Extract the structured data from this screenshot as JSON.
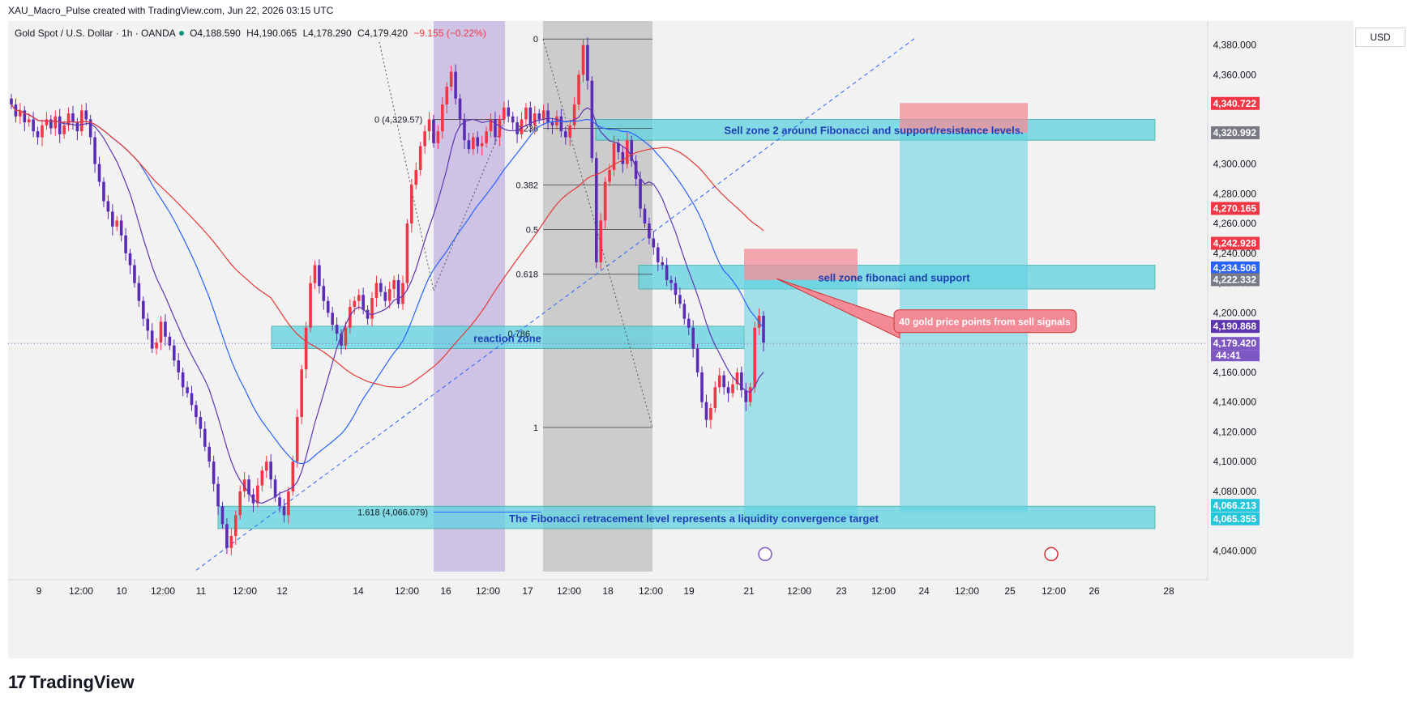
{
  "header": {
    "title": "XAU_Macro_Pulse created with TradingView.com, Jun 22, 2026 03:15 UTC"
  },
  "symbol": {
    "name": "Gold Spot / U.S. Dollar · 1h · OANDA",
    "open_label": "O",
    "open": "4,188.590",
    "high_label": "H",
    "high": "4,190.065",
    "low_label": "L",
    "low": "4,178.290",
    "close_label": "C",
    "close": "4,179.420",
    "change": "−9.155 (−0.22%)"
  },
  "currency": "USD",
  "footer": {
    "brand": "TradingView"
  },
  "colors": {
    "up": "#f23645",
    "down": "#5b2bb5",
    "zone": "#5fd2e0",
    "sell": "#f28b96",
    "ma_red": "#e53935",
    "ma_blue": "#2962ff",
    "ma_purple": "#5e35b1"
  },
  "chart_data": {
    "type": "candlestick",
    "ylim": [
      4025,
      4395
    ],
    "xlim": [
      0,
      1620
    ],
    "y_ticks": [
      "4,380.000",
      "4,360.000",
      "4,340.000",
      "4,320.000",
      "4,300.000",
      "4,280.000",
      "4,260.000",
      "4,240.000",
      "4,220.000",
      "4,200.000",
      "4,180.000",
      "4,160.000",
      "4,140.000",
      "4,120.000",
      "4,100.000",
      "4,080.000",
      "4,060.000",
      "4,040.000"
    ],
    "y_tick_values": [
      4380,
      4360,
      4340,
      4320,
      4300,
      4280,
      4260,
      4240,
      4220,
      4200,
      4180,
      4160,
      4140,
      4120,
      4100,
      4080,
      4060,
      4040
    ],
    "x_ticks": [
      {
        "label": "9",
        "x": 38
      },
      {
        "label": "12:00",
        "x": 90
      },
      {
        "label": "10",
        "x": 140
      },
      {
        "label": "12:00",
        "x": 191
      },
      {
        "label": "11",
        "x": 238
      },
      {
        "label": "12:00",
        "x": 292
      },
      {
        "label": "12",
        "x": 338
      },
      {
        "label": "14",
        "x": 432
      },
      {
        "label": "12:00",
        "x": 492
      },
      {
        "label": "16",
        "x": 540
      },
      {
        "label": "12:00",
        "x": 592
      },
      {
        "label": "17",
        "x": 641
      },
      {
        "label": "12:00",
        "x": 692
      },
      {
        "label": "18",
        "x": 740
      },
      {
        "label": "12:00",
        "x": 793
      },
      {
        "label": "19",
        "x": 840
      },
      {
        "label": "21",
        "x": 914
      },
      {
        "label": "12:00",
        "x": 976
      },
      {
        "label": "23",
        "x": 1028
      },
      {
        "label": "12:00",
        "x": 1080
      },
      {
        "label": "24",
        "x": 1130
      },
      {
        "label": "12:00",
        "x": 1183
      },
      {
        "label": "25",
        "x": 1236
      },
      {
        "label": "12:00",
        "x": 1290
      },
      {
        "label": "26",
        "x": 1340
      },
      {
        "label": "28",
        "x": 1432
      }
    ],
    "price_badges": [
      {
        "label": "4,340.722",
        "value": 4340.722,
        "color": "#f23645"
      },
      {
        "label": "4,320.992",
        "value": 4320.992,
        "color": "#787b86"
      },
      {
        "label": "4,270.165",
        "value": 4270.165,
        "color": "#f23645"
      },
      {
        "label": "4,242.928",
        "value": 4242.928,
        "color": "#f23645"
      },
      {
        "label": "4,234.506",
        "value": 4234.506,
        "color": "#2962ff"
      },
      {
        "label": "4,222.332",
        "value": 4222.332,
        "color": "#787b86"
      },
      {
        "label": "4,190.868",
        "value": 4190.868,
        "color": "#5e35b1"
      },
      {
        "label": "4,179.420",
        "value": 4179.42,
        "color": "#7e57c2"
      },
      {
        "label": "4,066.213",
        "value": 4066.213,
        "color": "#26c6da"
      },
      {
        "label": "4,065.355",
        "value": 4065.355,
        "color": "#26c6da"
      }
    ],
    "countdown": "44:41",
    "fib_levels": [
      {
        "label": "0",
        "value": 4384
      },
      {
        "label": "0.236",
        "value": 4324
      },
      {
        "label": "0.382",
        "value": 4286
      },
      {
        "label": "0.5",
        "value": 4256
      },
      {
        "label": "0.618",
        "value": 4226
      },
      {
        "label": "1",
        "value": 4123
      }
    ],
    "fib_extension": {
      "label": "1.618 (4,066.079)",
      "value": 4066.079
    },
    "fib_zero_note": "0 (4,329.57)",
    "fib_partial": "0.786",
    "annotations": {
      "sell_zone_2": "Sell zone 2 around Fibonacci and support/resistance levels.",
      "sell_zone": "sell zone fibonaci and support",
      "reaction_zone": "reaction zone",
      "fib_target": "The Fibonacci retracement level represents a liquidity convergence target",
      "callout": "40 gold price points from sell signals"
    },
    "candles_close": [
      4340,
      4332,
      4336,
      4328,
      4330,
      4322,
      4318,
      4326,
      4330,
      4324,
      4332,
      4320,
      4326,
      4334,
      4328,
      4322,
      4336,
      4330,
      4318,
      4300,
      4288,
      4275,
      4268,
      4258,
      4262,
      4252,
      4240,
      4232,
      4220,
      4208,
      4196,
      4188,
      4176,
      4180,
      4194,
      4184,
      4178,
      4168,
      4160,
      4150,
      4146,
      4138,
      4130,
      4122,
      4110,
      4100,
      4085,
      4070,
      4058,
      4042,
      4050,
      4064,
      4080,
      4088,
      4078,
      4072,
      4084,
      4094,
      4100,
      4088,
      4076,
      4070,
      4064,
      4080,
      4100,
      4130,
      4162,
      4190,
      4220,
      4232,
      4218,
      4208,
      4200,
      4192,
      4186,
      4178,
      4190,
      4204,
      4208,
      4212,
      4202,
      4196,
      4210,
      4220,
      4214,
      4208,
      4216,
      4222,
      4206,
      4220,
      4260,
      4286,
      4296,
      4312,
      4322,
      4330,
      4314,
      4322,
      4340,
      4352,
      4362,
      4344,
      4330,
      4316,
      4310,
      4318,
      4312,
      4314,
      4322,
      4330,
      4318,
      4330,
      4338,
      4332,
      4328,
      4320,
      4330,
      4338,
      4326,
      4334,
      4330,
      4336,
      4328,
      4326,
      4332,
      4322,
      4318,
      4326,
      4340,
      4360,
      4380,
      4356,
      4304,
      4234,
      4262,
      4288,
      4296,
      4314,
      4308,
      4300,
      4316,
      4302,
      4290,
      4270,
      4260,
      4250,
      4244,
      4234,
      4232,
      4222,
      4220,
      4212,
      4206,
      4196,
      4190,
      4176,
      4160,
      4140,
      4128,
      4136,
      4150,
      4158,
      4150,
      4146,
      4152,
      4160,
      4148,
      4140,
      4150,
      4190,
      4198,
      4180
    ]
  }
}
